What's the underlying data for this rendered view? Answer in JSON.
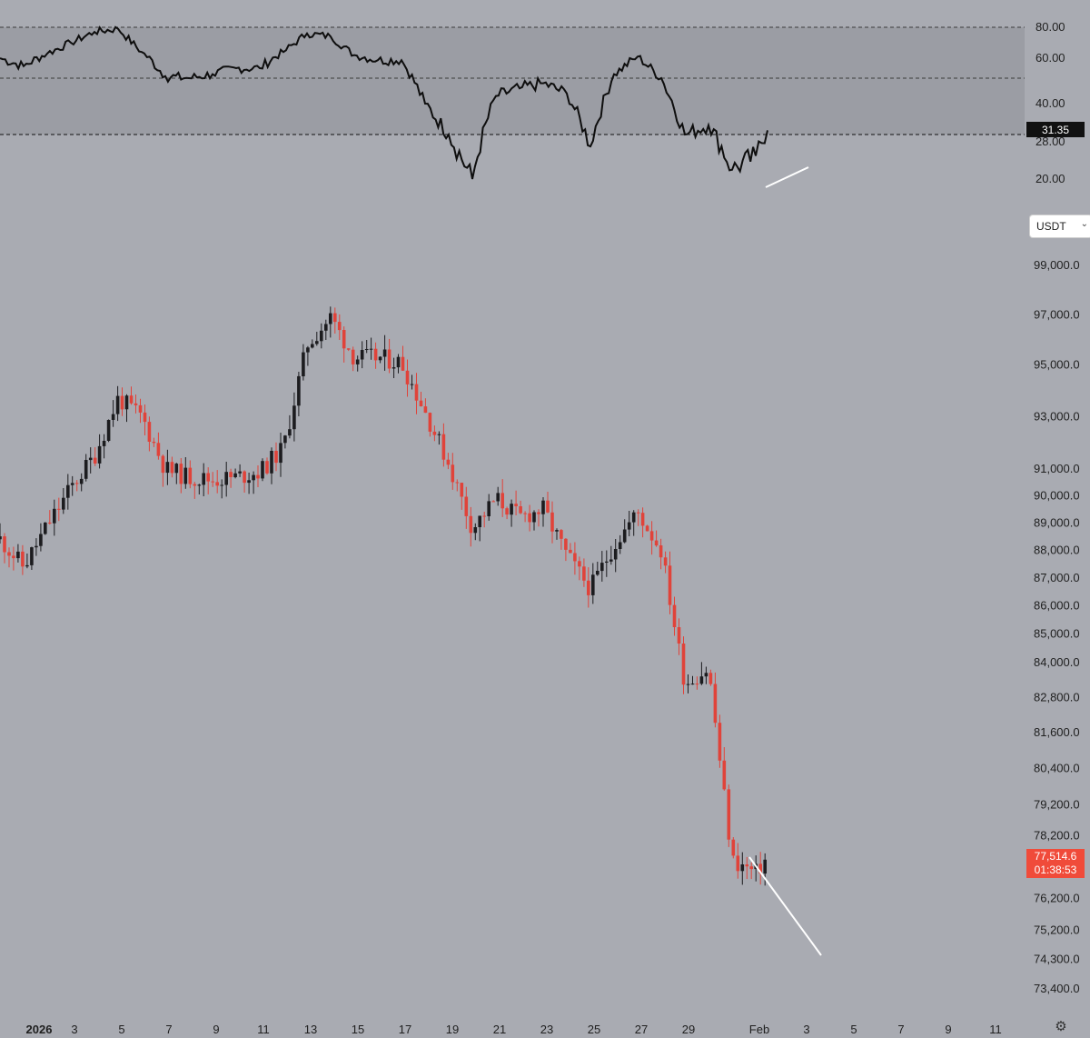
{
  "rsi_axis": {
    "ticks": [
      "80.00",
      "60.00",
      "40.00",
      "28.00",
      "20.00"
    ],
    "current_value": "31.35"
  },
  "currency_selector": {
    "value": "USDT",
    "icon": "chevron-down-icon"
  },
  "price_axis": {
    "ticks": [
      "99,000.0",
      "97,000.0",
      "95,000.0",
      "93,000.0",
      "91,000.0",
      "90,000.0",
      "89,000.0",
      "88,000.0",
      "87,000.0",
      "86,000.0",
      "85,000.0",
      "84,000.0",
      "82,800.0",
      "81,600.0",
      "80,400.0",
      "79,200.0",
      "78,200.0",
      "76,200.0",
      "75,200.0",
      "74,300.0",
      "73,400.0"
    ],
    "last_price": "77,514.6",
    "countdown": "01:38:53"
  },
  "time_axis": {
    "labels": [
      "2026",
      "3",
      "5",
      "7",
      "9",
      "11",
      "13",
      "15",
      "17",
      "19",
      "21",
      "23",
      "25",
      "27",
      "29",
      "Feb",
      "3",
      "5",
      "7",
      "9",
      "11"
    ]
  },
  "settings": {
    "icon": "gear-icon"
  },
  "colors": {
    "background": "#a9abb2",
    "rsi_band": "#9b9da4",
    "up_candle": "#1c1c1f",
    "down_candle": "#e0433a",
    "rsi_line": "#0e0e0e",
    "trendline": "#ffffff",
    "price_badge": "#f04b3a"
  },
  "chart_data": [
    {
      "type": "candlestick",
      "x_range": [
        "2026-01-01",
        "2026-02-11"
      ],
      "candle_interval": "2h",
      "y_scale": "log",
      "ylim": [
        73400,
        99000
      ],
      "close_path": [
        {
          "x": "2026-01-01",
          "y": 88400
        },
        {
          "x": "2026-01-02",
          "y": 87400
        },
        {
          "x": "2026-01-03",
          "y": 88900
        },
        {
          "x": "2026-01-04",
          "y": 90300
        },
        {
          "x": "2026-01-05",
          "y": 91500
        },
        {
          "x": "2026-01-06",
          "y": 93700
        },
        {
          "x": "2026-01-07",
          "y": 93000
        },
        {
          "x": "2026-01-08",
          "y": 91000
        },
        {
          "x": "2026-01-09",
          "y": 90700
        },
        {
          "x": "2026-01-10",
          "y": 90600
        },
        {
          "x": "2026-01-11",
          "y": 90700
        },
        {
          "x": "2026-01-12",
          "y": 90900
        },
        {
          "x": "2026-01-13",
          "y": 91800
        },
        {
          "x": "2026-01-14",
          "y": 95800
        },
        {
          "x": "2026-01-15",
          "y": 96900
        },
        {
          "x": "2026-01-16",
          "y": 95300
        },
        {
          "x": "2026-01-17",
          "y": 95300
        },
        {
          "x": "2026-01-18",
          "y": 95100
        },
        {
          "x": "2026-01-19",
          "y": 93200
        },
        {
          "x": "2026-01-20",
          "y": 91200
        },
        {
          "x": "2026-01-21",
          "y": 88800
        },
        {
          "x": "2026-01-22",
          "y": 89900
        },
        {
          "x": "2026-01-23",
          "y": 89200
        },
        {
          "x": "2026-01-24",
          "y": 89500
        },
        {
          "x": "2026-01-25",
          "y": 87800
        },
        {
          "x": "2026-01-26",
          "y": 86600
        },
        {
          "x": "2026-01-27",
          "y": 88200
        },
        {
          "x": "2026-01-28",
          "y": 89400
        },
        {
          "x": "2026-01-29",
          "y": 88000
        },
        {
          "x": "2026-01-30",
          "y": 83300
        },
        {
          "x": "2026-01-31",
          "y": 83800
        },
        {
          "x": "2026-02-01",
          "y": 77400
        },
        {
          "x": "2026-02-02",
          "y": 77000
        },
        {
          "x": "2026-02-02T12:00",
          "y": 77514.6
        }
      ],
      "last_price": 77514.6
    },
    {
      "type": "line",
      "indicator": "RSI",
      "ylim": [
        15,
        82
      ],
      "levels": [
        80,
        50,
        30
      ],
      "series": [
        {
          "x": "2026-01-01",
          "y": 60
        },
        {
          "x": "2026-01-02",
          "y": 56
        },
        {
          "x": "2026-01-03",
          "y": 63
        },
        {
          "x": "2026-01-04",
          "y": 70
        },
        {
          "x": "2026-01-05",
          "y": 77
        },
        {
          "x": "2026-01-06",
          "y": 79
        },
        {
          "x": "2026-01-07",
          "y": 64
        },
        {
          "x": "2026-01-08",
          "y": 51
        },
        {
          "x": "2026-01-09",
          "y": 50
        },
        {
          "x": "2026-01-10",
          "y": 52
        },
        {
          "x": "2026-01-11",
          "y": 55
        },
        {
          "x": "2026-01-12",
          "y": 55
        },
        {
          "x": "2026-01-13",
          "y": 64
        },
        {
          "x": "2026-01-14",
          "y": 76
        },
        {
          "x": "2026-01-15",
          "y": 74
        },
        {
          "x": "2026-01-16",
          "y": 62
        },
        {
          "x": "2026-01-17",
          "y": 59
        },
        {
          "x": "2026-01-18",
          "y": 59
        },
        {
          "x": "2026-01-19",
          "y": 40
        },
        {
          "x": "2026-01-20",
          "y": 30
        },
        {
          "x": "2026-01-21",
          "y": 20
        },
        {
          "x": "2026-01-22",
          "y": 43
        },
        {
          "x": "2026-01-23",
          "y": 46
        },
        {
          "x": "2026-01-24",
          "y": 48
        },
        {
          "x": "2026-01-25",
          "y": 44
        },
        {
          "x": "2026-01-26",
          "y": 27
        },
        {
          "x": "2026-01-27",
          "y": 52
        },
        {
          "x": "2026-01-28",
          "y": 61
        },
        {
          "x": "2026-01-29",
          "y": 50
        },
        {
          "x": "2026-01-30",
          "y": 30
        },
        {
          "x": "2026-01-31",
          "y": 33
        },
        {
          "x": "2026-02-01",
          "y": 22
        },
        {
          "x": "2026-02-02",
          "y": 25
        },
        {
          "x": "2026-02-02T12:00",
          "y": 31.35
        }
      ],
      "last_value": 31.35
    }
  ]
}
